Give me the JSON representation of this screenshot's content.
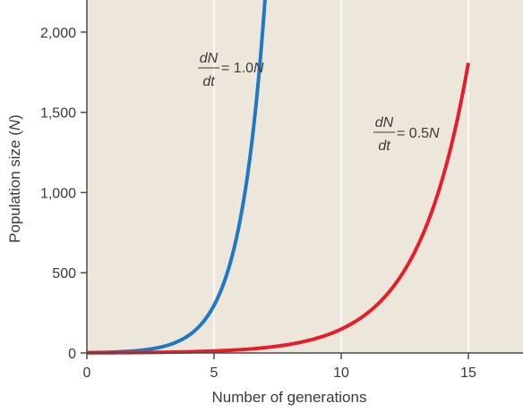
{
  "chart_data": {
    "type": "line",
    "xlabel": "Number of generations",
    "ylabel_main": "Population size (",
    "ylabel_var": "N",
    "ylabel_close": ")",
    "xlim": [
      0,
      17
    ],
    "ylim": [
      0,
      2200
    ],
    "x_ticks": [
      0,
      5,
      10,
      15
    ],
    "y_ticks": [
      0,
      500,
      1000,
      1500,
      2000
    ],
    "x_tick_labels": [
      "0",
      "5",
      "10",
      "15"
    ],
    "y_tick_labels": [
      "0",
      "500",
      "1,000",
      "1,500",
      "2,000"
    ],
    "grid": "vertical",
    "background_color": "#ede6da",
    "grid_color": "#ffffff",
    "series": [
      {
        "color": "#1f78c1",
        "rate": 1.0,
        "x_start": 0,
        "x_end": 7.6,
        "y_start": 2,
        "annotation": {
          "num": "dN",
          "den": "dt",
          "eq": " = 1.0",
          "var": "N"
        }
      },
      {
        "color": "#e41e2b",
        "rate": 0.5,
        "x_start": 0,
        "x_end": 15,
        "y_start": 1,
        "annotation": {
          "num": "dN",
          "den": "dt",
          "eq": " = 0.5",
          "var": "N"
        }
      }
    ]
  }
}
